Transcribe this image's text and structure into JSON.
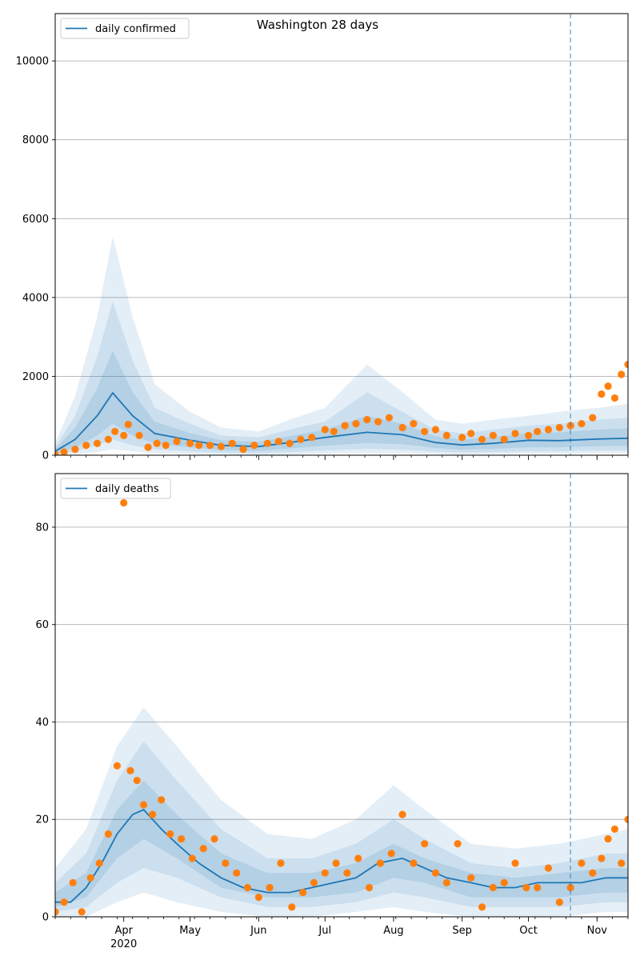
{
  "figure": {
    "suptitle": "Washington 28 days"
  },
  "chart_data": [
    {
      "type": "line",
      "title": "Washington 28 days",
      "legend": {
        "label": "daily confirmed",
        "placement": "top-left"
      },
      "x_range": [
        "2020-03-01",
        "2020-11-15"
      ],
      "ylim": [
        0,
        11200
      ],
      "y_ticks": [
        0,
        2000,
        4000,
        6000,
        8000,
        10000
      ],
      "grid": "horizontal",
      "forecast_start": "2020-10-20",
      "model_median": {
        "x": [
          "2020-03-01",
          "2020-03-10",
          "2020-03-20",
          "2020-03-27",
          "2020-04-05",
          "2020-04-15",
          "2020-05-01",
          "2020-05-15",
          "2020-06-01",
          "2020-06-15",
          "2020-07-01",
          "2020-07-20",
          "2020-08-05",
          "2020-08-20",
          "2020-09-01",
          "2020-09-15",
          "2020-10-01",
          "2020-10-15",
          "2020-11-01",
          "2020-11-15"
        ],
        "y": [
          100,
          400,
          1000,
          1580,
          1000,
          550,
          380,
          250,
          220,
          320,
          450,
          580,
          520,
          320,
          260,
          300,
          380,
          370,
          410,
          430
        ]
      },
      "bands": [
        {
          "name": "band-outer",
          "x": [
            "2020-03-01",
            "2020-03-10",
            "2020-03-20",
            "2020-03-27",
            "2020-04-05",
            "2020-04-15",
            "2020-05-01",
            "2020-05-15",
            "2020-06-01",
            "2020-06-15",
            "2020-07-01",
            "2020-07-20",
            "2020-08-05",
            "2020-08-20",
            "2020-09-01",
            "2020-09-15",
            "2020-10-01",
            "2020-10-15",
            "2020-11-01",
            "2020-11-15"
          ],
          "lo": [
            0,
            30,
            80,
            150,
            100,
            50,
            30,
            20,
            10,
            20,
            40,
            60,
            50,
            30,
            20,
            30,
            40,
            40,
            50,
            50
          ],
          "hi": [
            300,
            1500,
            3500,
            5550,
            3500,
            1800,
            1100,
            700,
            600,
            900,
            1200,
            2300,
            1600,
            900,
            800,
            900,
            1000,
            1100,
            1200,
            1300
          ]
        },
        {
          "name": "band-middle",
          "x": [
            "2020-03-01",
            "2020-03-10",
            "2020-03-20",
            "2020-03-27",
            "2020-04-05",
            "2020-04-15",
            "2020-05-01",
            "2020-05-15",
            "2020-06-01",
            "2020-06-15",
            "2020-07-01",
            "2020-07-20",
            "2020-08-05",
            "2020-08-20",
            "2020-09-01",
            "2020-09-15",
            "2020-10-01",
            "2020-10-15",
            "2020-11-01",
            "2020-11-15"
          ],
          "lo": [
            20,
            100,
            250,
            400,
            250,
            150,
            100,
            60,
            50,
            80,
            120,
            160,
            140,
            90,
            70,
            80,
            100,
            100,
            120,
            120
          ],
          "hi": [
            200,
            1000,
            2500,
            3900,
            2400,
            1200,
            800,
            500,
            450,
            650,
            850,
            1600,
            1100,
            650,
            550,
            650,
            750,
            800,
            900,
            950
          ]
        },
        {
          "name": "band-inner",
          "x": [
            "2020-03-01",
            "2020-03-10",
            "2020-03-20",
            "2020-03-27",
            "2020-04-05",
            "2020-04-15",
            "2020-05-01",
            "2020-05-15",
            "2020-06-01",
            "2020-06-15",
            "2020-07-01",
            "2020-07-20",
            "2020-08-05",
            "2020-08-20",
            "2020-09-01",
            "2020-09-15",
            "2020-10-01",
            "2020-10-15",
            "2020-11-01",
            "2020-11-15"
          ],
          "lo": [
            50,
            200,
            500,
            800,
            500,
            300,
            200,
            130,
            110,
            170,
            240,
            310,
            280,
            180,
            140,
            160,
            200,
            200,
            230,
            240
          ],
          "hi": [
            150,
            700,
            1700,
            2650,
            1600,
            850,
            560,
            380,
            340,
            480,
            650,
            1000,
            800,
            480,
            400,
            460,
            560,
            580,
            650,
            680
          ]
        }
      ],
      "observed": {
        "x": [
          "2020-03-01",
          "2020-03-05",
          "2020-03-10",
          "2020-03-15",
          "2020-03-20",
          "2020-03-25",
          "2020-03-28",
          "2020-04-01",
          "2020-04-03",
          "2020-04-08",
          "2020-04-12",
          "2020-04-16",
          "2020-04-20",
          "2020-04-25",
          "2020-05-01",
          "2020-05-05",
          "2020-05-10",
          "2020-05-15",
          "2020-05-20",
          "2020-05-25",
          "2020-05-30",
          "2020-06-05",
          "2020-06-10",
          "2020-06-15",
          "2020-06-20",
          "2020-06-25",
          "2020-07-01",
          "2020-07-05",
          "2020-07-10",
          "2020-07-15",
          "2020-07-20",
          "2020-07-25",
          "2020-07-30",
          "2020-08-05",
          "2020-08-10",
          "2020-08-15",
          "2020-08-20",
          "2020-08-25",
          "2020-09-01",
          "2020-09-05",
          "2020-09-10",
          "2020-09-15",
          "2020-09-20",
          "2020-09-25",
          "2020-10-01",
          "2020-10-05",
          "2020-10-10",
          "2020-10-15",
          "2020-10-20",
          "2020-10-25",
          "2020-10-30",
          "2020-11-03",
          "2020-11-06",
          "2020-11-09",
          "2020-11-12",
          "2020-11-15"
        ],
        "y": [
          20,
          80,
          150,
          250,
          300,
          400,
          600,
          500,
          780,
          500,
          200,
          300,
          250,
          350,
          300,
          250,
          250,
          220,
          300,
          150,
          250,
          300,
          350,
          300,
          400,
          450,
          650,
          600,
          750,
          800,
          900,
          850,
          950,
          700,
          800,
          600,
          650,
          500,
          450,
          550,
          400,
          500,
          400,
          550,
          500,
          600,
          650,
          700,
          750,
          800,
          950,
          1550,
          1750,
          1450,
          2050,
          2300
        ]
      }
    },
    {
      "type": "line",
      "legend": {
        "label": "daily deaths",
        "placement": "top-left"
      },
      "x_range": [
        "2020-03-01",
        "2020-11-15"
      ],
      "x_tick_labels": [
        {
          "date": "2020-04-01",
          "label": "Apr",
          "sub": "2020"
        },
        {
          "date": "2020-05-01",
          "label": "May"
        },
        {
          "date": "2020-06-01",
          "label": "Jun"
        },
        {
          "date": "2020-07-01",
          "label": "Jul"
        },
        {
          "date": "2020-08-01",
          "label": "Aug"
        },
        {
          "date": "2020-09-01",
          "label": "Sep"
        },
        {
          "date": "2020-10-01",
          "label": "Oct"
        },
        {
          "date": "2020-11-01",
          "label": "Nov"
        }
      ],
      "ylim": [
        0,
        91
      ],
      "y_ticks": [
        0,
        20,
        40,
        60,
        80
      ],
      "grid": "horizontal",
      "forecast_start": "2020-10-20",
      "model_median": {
        "x": [
          "2020-03-01",
          "2020-03-08",
          "2020-03-15",
          "2020-03-22",
          "2020-03-29",
          "2020-04-05",
          "2020-04-10",
          "2020-04-18",
          "2020-04-25",
          "2020-05-05",
          "2020-05-15",
          "2020-05-25",
          "2020-06-05",
          "2020-06-15",
          "2020-06-25",
          "2020-07-05",
          "2020-07-15",
          "2020-07-25",
          "2020-08-05",
          "2020-08-15",
          "2020-08-25",
          "2020-09-05",
          "2020-09-15",
          "2020-09-25",
          "2020-10-05",
          "2020-10-15",
          "2020-10-25",
          "2020-11-05",
          "2020-11-15"
        ],
        "y": [
          3,
          3,
          6,
          11,
          17,
          21,
          22,
          18,
          15,
          11,
          8,
          6,
          5,
          5,
          6,
          7,
          8,
          11,
          12,
          10,
          8,
          7,
          6,
          6,
          7,
          7,
          7,
          8,
          8
        ]
      },
      "bands": [
        {
          "name": "band-outer",
          "x": [
            "2020-03-01",
            "2020-03-15",
            "2020-03-29",
            "2020-04-10",
            "2020-04-25",
            "2020-05-15",
            "2020-06-05",
            "2020-06-25",
            "2020-07-15",
            "2020-08-01",
            "2020-08-15",
            "2020-09-05",
            "2020-09-25",
            "2020-10-15",
            "2020-11-05",
            "2020-11-15"
          ],
          "lo": [
            0,
            0,
            3,
            5,
            3,
            1,
            0,
            0,
            1,
            2,
            1,
            0,
            0,
            0,
            1,
            1
          ],
          "hi": [
            10,
            18,
            35,
            43,
            35,
            24,
            17,
            16,
            20,
            27,
            22,
            15,
            14,
            15,
            17,
            18
          ]
        },
        {
          "name": "band-middle",
          "x": [
            "2020-03-01",
            "2020-03-15",
            "2020-03-29",
            "2020-04-10",
            "2020-04-25",
            "2020-05-15",
            "2020-06-05",
            "2020-06-25",
            "2020-07-15",
            "2020-08-01",
            "2020-08-15",
            "2020-09-05",
            "2020-09-25",
            "2020-10-15",
            "2020-11-05",
            "2020-11-15"
          ],
          "lo": [
            1,
            2,
            7,
            10,
            8,
            4,
            2,
            2,
            3,
            5,
            4,
            2,
            2,
            2,
            3,
            3
          ],
          "hi": [
            7,
            13,
            28,
            36,
            28,
            18,
            12,
            12,
            15,
            20,
            16,
            11,
            10,
            11,
            13,
            13
          ]
        },
        {
          "name": "band-inner",
          "x": [
            "2020-03-01",
            "2020-03-15",
            "2020-03-29",
            "2020-04-10",
            "2020-04-25",
            "2020-05-15",
            "2020-06-05",
            "2020-06-25",
            "2020-07-15",
            "2020-08-01",
            "2020-08-15",
            "2020-09-05",
            "2020-09-25",
            "2020-10-15",
            "2020-11-05",
            "2020-11-15"
          ],
          "lo": [
            2,
            4,
            12,
            16,
            12,
            6,
            4,
            4,
            5,
            8,
            7,
            4,
            4,
            4,
            5,
            5
          ],
          "hi": [
            5,
            9,
            22,
            28,
            21,
            13,
            9,
            9,
            11,
            15,
            12,
            9,
            8,
            9,
            10,
            10
          ]
        }
      ],
      "observed": {
        "x": [
          "2020-03-01",
          "2020-03-05",
          "2020-03-09",
          "2020-03-13",
          "2020-03-17",
          "2020-03-21",
          "2020-03-25",
          "2020-03-29",
          "2020-04-01",
          "2020-04-04",
          "2020-04-07",
          "2020-04-10",
          "2020-04-14",
          "2020-04-18",
          "2020-04-22",
          "2020-04-27",
          "2020-05-02",
          "2020-05-07",
          "2020-05-12",
          "2020-05-17",
          "2020-05-22",
          "2020-05-27",
          "2020-06-01",
          "2020-06-06",
          "2020-06-11",
          "2020-06-16",
          "2020-06-21",
          "2020-06-26",
          "2020-07-01",
          "2020-07-06",
          "2020-07-11",
          "2020-07-16",
          "2020-07-21",
          "2020-07-26",
          "2020-07-31",
          "2020-08-05",
          "2020-08-10",
          "2020-08-15",
          "2020-08-20",
          "2020-08-25",
          "2020-08-30",
          "2020-09-05",
          "2020-09-10",
          "2020-09-15",
          "2020-09-20",
          "2020-09-25",
          "2020-09-30",
          "2020-10-05",
          "2020-10-10",
          "2020-10-15",
          "2020-10-20",
          "2020-10-25",
          "2020-10-30",
          "2020-11-03",
          "2020-11-06",
          "2020-11-09",
          "2020-11-12",
          "2020-11-15"
        ],
        "y": [
          1,
          3,
          7,
          1,
          8,
          11,
          17,
          31,
          85,
          30,
          28,
          23,
          21,
          24,
          17,
          16,
          12,
          14,
          16,
          11,
          9,
          6,
          4,
          6,
          11,
          2,
          5,
          7,
          9,
          11,
          9,
          12,
          6,
          11,
          13,
          21,
          11,
          15,
          9,
          7,
          15,
          8,
          2,
          6,
          7,
          11,
          6,
          6,
          10,
          3,
          6,
          11,
          9,
          12,
          16,
          18,
          11,
          20
        ]
      }
    }
  ],
  "colors": {
    "line": "#1f77b4",
    "band": "#1f77b4",
    "points": "#ff7f0e",
    "grid": "#b0b0b0",
    "forecast_line": "#1f77b4"
  }
}
